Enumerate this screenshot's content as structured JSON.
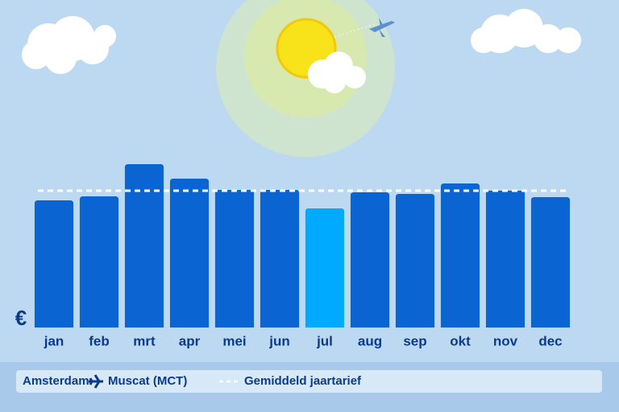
{
  "chart_data": {
    "type": "bar",
    "currency": "€",
    "route": {
      "from": "Amsterdam",
      "to": "Muscat (MCT)"
    },
    "average_label": "Gemiddeld jaartarief",
    "categories": [
      "jan",
      "feb",
      "mrt",
      "apr",
      "mei",
      "jun",
      "jul",
      "aug",
      "sep",
      "okt",
      "nov",
      "dec"
    ],
    "values": [
      158,
      163,
      203,
      185,
      171,
      171,
      148,
      168,
      166,
      179,
      170,
      162
    ],
    "colors": [
      "#0a64d2",
      "#0a64d2",
      "#0a64d2",
      "#0a64d2",
      "#0a64d2",
      "#0a64d2",
      "#00aaff",
      "#0a64d2",
      "#0a64d2",
      "#0a64d2",
      "#0a64d2",
      "#0a64d2"
    ],
    "average": 170,
    "ylim": [
      0,
      250
    ]
  }
}
